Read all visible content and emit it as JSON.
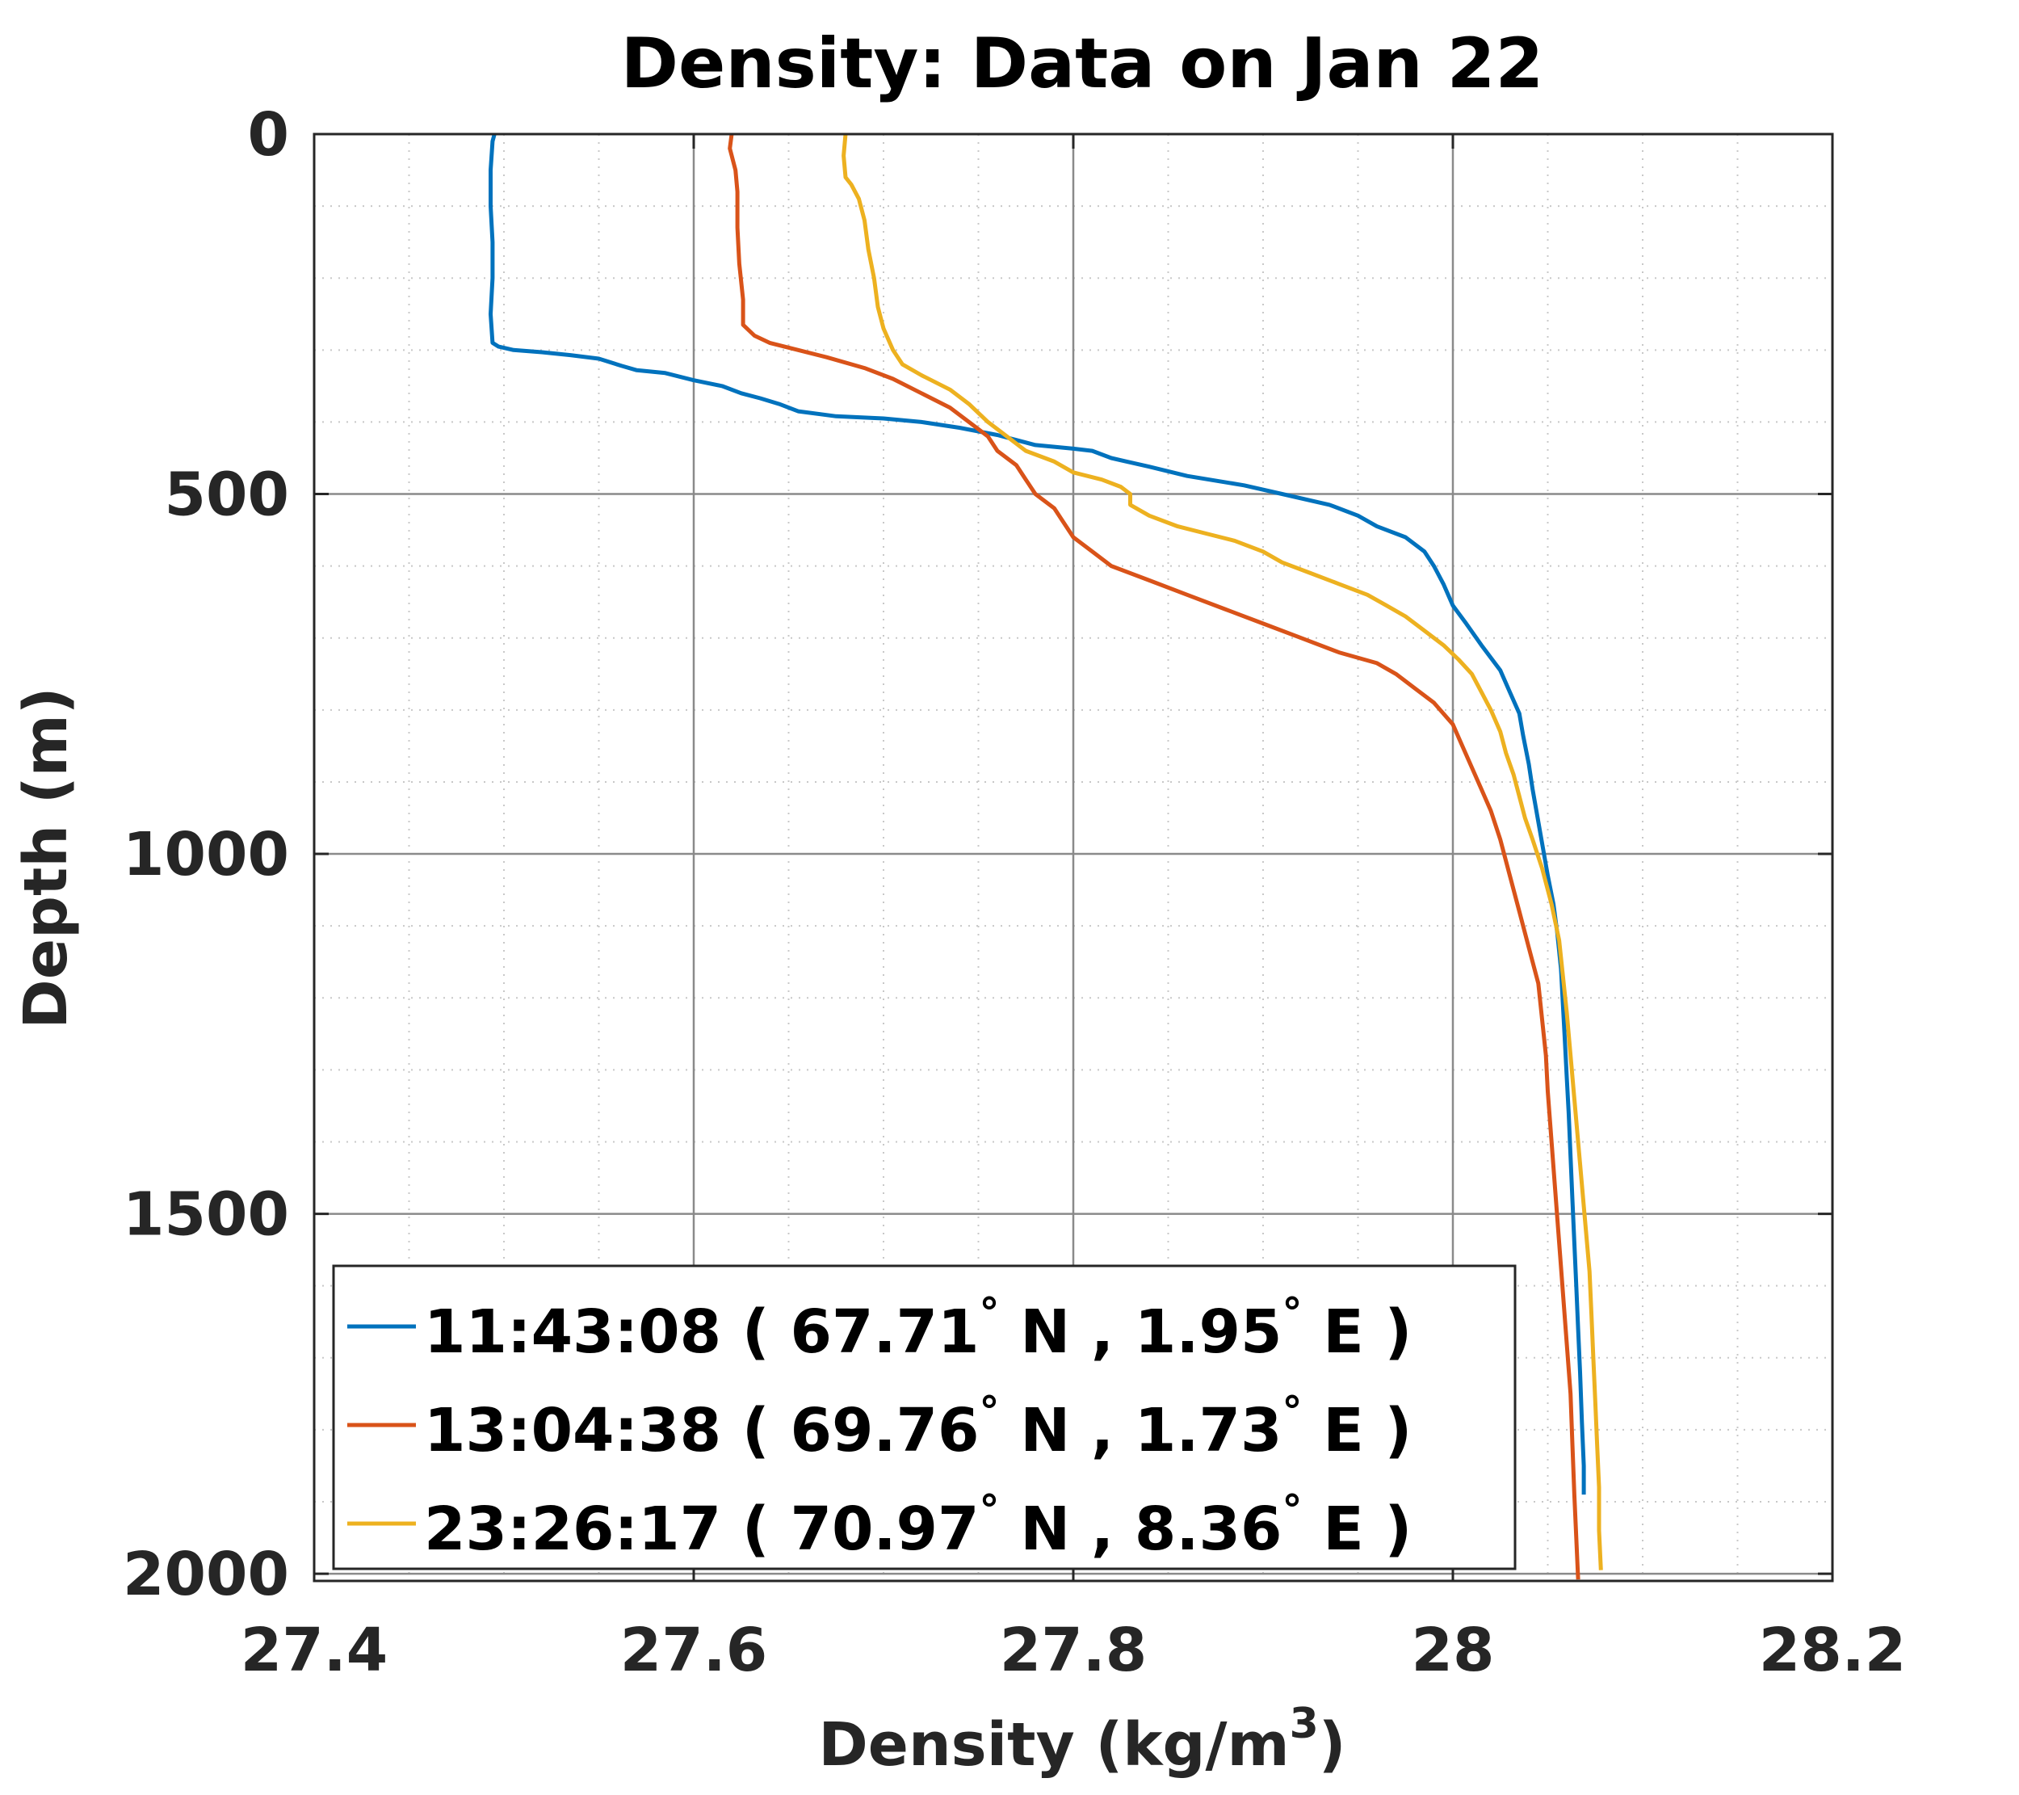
{
  "chart_data": {
    "type": "line",
    "title": "Density: Data on Jan 22",
    "xlabel": "Density (kg/m",
    "xlabel_sup": "3",
    "xlabel_end": ")",
    "ylabel": "Depth (m)",
    "xlim": [
      27.4,
      28.2
    ],
    "ylim": [
      0,
      2010
    ],
    "y_reversed": true,
    "xticks": [
      27.4,
      27.6,
      27.8,
      28,
      28.2
    ],
    "xtick_labels": [
      "27.4",
      "27.6",
      "27.8",
      "28",
      "28.2"
    ],
    "yticks": [
      0,
      500,
      1000,
      1500,
      2000
    ],
    "ytick_labels": [
      "0",
      "500",
      "1000",
      "1500",
      "2000"
    ],
    "grid": "major and minor",
    "legend_position": "bottom-left",
    "series": [
      {
        "name": "11:43:08 ( 67.71° N , 1.95° E )",
        "label_time": "11:43:08 ( 67.71",
        "label_lat": " N , 1.95",
        "label_end": " E )",
        "color": "#0072BD",
        "points": [
          [
            27.495,
            0
          ],
          [
            27.494,
            10
          ],
          [
            27.493,
            50
          ],
          [
            27.493,
            100
          ],
          [
            27.494,
            150
          ],
          [
            27.494,
            200
          ],
          [
            27.493,
            250
          ],
          [
            27.494,
            290
          ],
          [
            27.497,
            295
          ],
          [
            27.505,
            300
          ],
          [
            27.52,
            303
          ],
          [
            27.535,
            307
          ],
          [
            27.55,
            312
          ],
          [
            27.562,
            322
          ],
          [
            27.57,
            328
          ],
          [
            27.585,
            332
          ],
          [
            27.6,
            342
          ],
          [
            27.615,
            350
          ],
          [
            27.625,
            360
          ],
          [
            27.635,
            367
          ],
          [
            27.645,
            375
          ],
          [
            27.655,
            385
          ],
          [
            27.675,
            392
          ],
          [
            27.7,
            395
          ],
          [
            27.72,
            400
          ],
          [
            27.74,
            408
          ],
          [
            27.76,
            418
          ],
          [
            27.78,
            432
          ],
          [
            27.8,
            437
          ],
          [
            27.81,
            440
          ],
          [
            27.82,
            450
          ],
          [
            27.84,
            462
          ],
          [
            27.86,
            475
          ],
          [
            27.89,
            488
          ],
          [
            27.91,
            500
          ],
          [
            27.935,
            515
          ],
          [
            27.95,
            530
          ],
          [
            27.96,
            545
          ],
          [
            27.975,
            560
          ],
          [
            27.985,
            580
          ],
          [
            27.99,
            600
          ],
          [
            27.995,
            625
          ],
          [
            28.0,
            655
          ],
          [
            28.007,
            680
          ],
          [
            28.015,
            710
          ],
          [
            28.025,
            745
          ],
          [
            28.03,
            775
          ],
          [
            28.035,
            805
          ],
          [
            28.037,
            835
          ],
          [
            28.04,
            875
          ],
          [
            28.042,
            910
          ],
          [
            28.044,
            940
          ],
          [
            28.046,
            970
          ],
          [
            28.048,
            1000
          ],
          [
            28.05,
            1030
          ],
          [
            28.053,
            1070
          ],
          [
            28.055,
            1110
          ],
          [
            28.057,
            1160
          ],
          [
            28.058,
            1210
          ],
          [
            28.059,
            1260
          ],
          [
            28.06,
            1310
          ],
          [
            28.061,
            1360
          ],
          [
            28.062,
            1420
          ],
          [
            28.063,
            1480
          ],
          [
            28.064,
            1540
          ],
          [
            28.065,
            1600
          ],
          [
            28.066,
            1660
          ],
          [
            28.067,
            1720
          ],
          [
            28.068,
            1790
          ],
          [
            28.069,
            1850
          ],
          [
            28.069,
            1890
          ]
        ]
      },
      {
        "name": "13:04:38 ( 69.76° N , 1.73° E )",
        "label_time": "13:04:38 ( 69.76",
        "label_lat": " N , 1.73",
        "label_end": " E )",
        "color": "#D95319",
        "points": [
          [
            27.62,
            0
          ],
          [
            27.619,
            20
          ],
          [
            27.622,
            50
          ],
          [
            27.623,
            80
          ],
          [
            27.623,
            130
          ],
          [
            27.624,
            180
          ],
          [
            27.626,
            230
          ],
          [
            27.626,
            265
          ],
          [
            27.632,
            280
          ],
          [
            27.64,
            290
          ],
          [
            27.655,
            300
          ],
          [
            27.67,
            310
          ],
          [
            27.69,
            325
          ],
          [
            27.705,
            340
          ],
          [
            27.72,
            360
          ],
          [
            27.735,
            380
          ],
          [
            27.745,
            400
          ],
          [
            27.755,
            420
          ],
          [
            27.76,
            440
          ],
          [
            27.77,
            460
          ],
          [
            27.775,
            480
          ],
          [
            27.78,
            500
          ],
          [
            27.79,
            520
          ],
          [
            27.795,
            540
          ],
          [
            27.8,
            560
          ],
          [
            27.81,
            580
          ],
          [
            27.82,
            600
          ],
          [
            27.84,
            620
          ],
          [
            27.86,
            640
          ],
          [
            27.88,
            660
          ],
          [
            27.9,
            680
          ],
          [
            27.92,
            700
          ],
          [
            27.94,
            720
          ],
          [
            27.96,
            735
          ],
          [
            27.97,
            750
          ],
          [
            27.98,
            770
          ],
          [
            27.99,
            790
          ],
          [
            28.0,
            820
          ],
          [
            28.005,
            850
          ],
          [
            28.01,
            880
          ],
          [
            28.015,
            910
          ],
          [
            28.02,
            940
          ],
          [
            28.025,
            980
          ],
          [
            28.03,
            1030
          ],
          [
            28.035,
            1080
          ],
          [
            28.04,
            1130
          ],
          [
            28.045,
            1180
          ],
          [
            28.047,
            1230
          ],
          [
            28.049,
            1280
          ],
          [
            28.05,
            1330
          ],
          [
            28.052,
            1400
          ],
          [
            28.054,
            1470
          ],
          [
            28.056,
            1540
          ],
          [
            28.058,
            1610
          ],
          [
            28.06,
            1680
          ],
          [
            28.062,
            1750
          ],
          [
            28.063,
            1820
          ],
          [
            28.064,
            1890
          ],
          [
            28.065,
            1950
          ],
          [
            28.066,
            2008
          ]
        ]
      },
      {
        "name": "23:26:17 ( 70.97° N , 8.36° E )",
        "label_time": "23:26:17 ( 70.97",
        "label_lat": " N , 8.36",
        "label_end": " E )",
        "color": "#EDB120",
        "points": [
          [
            27.68,
            0
          ],
          [
            27.679,
            30
          ],
          [
            27.68,
            60
          ],
          [
            27.683,
            70
          ],
          [
            27.687,
            90
          ],
          [
            27.69,
            120
          ],
          [
            27.692,
            160
          ],
          [
            27.695,
            200
          ],
          [
            27.697,
            240
          ],
          [
            27.7,
            270
          ],
          [
            27.705,
            300
          ],
          [
            27.71,
            320
          ],
          [
            27.72,
            335
          ],
          [
            27.735,
            355
          ],
          [
            27.745,
            375
          ],
          [
            27.755,
            400
          ],
          [
            27.765,
            420
          ],
          [
            27.775,
            440
          ],
          [
            27.79,
            455
          ],
          [
            27.8,
            470
          ],
          [
            27.815,
            480
          ],
          [
            27.825,
            490
          ],
          [
            27.83,
            500
          ],
          [
            27.83,
            515
          ],
          [
            27.84,
            530
          ],
          [
            27.855,
            545
          ],
          [
            27.87,
            555
          ],
          [
            27.885,
            565
          ],
          [
            27.9,
            580
          ],
          [
            27.91,
            595
          ],
          [
            27.925,
            610
          ],
          [
            27.94,
            625
          ],
          [
            27.955,
            640
          ],
          [
            27.965,
            655
          ],
          [
            27.975,
            670
          ],
          [
            27.985,
            690
          ],
          [
            27.995,
            710
          ],
          [
            28.003,
            730
          ],
          [
            28.01,
            750
          ],
          [
            28.015,
            775
          ],
          [
            28.02,
            800
          ],
          [
            28.025,
            830
          ],
          [
            28.028,
            860
          ],
          [
            28.032,
            890
          ],
          [
            28.035,
            920
          ],
          [
            28.038,
            950
          ],
          [
            28.042,
            980
          ],
          [
            28.047,
            1020
          ],
          [
            28.052,
            1070
          ],
          [
            28.056,
            1120
          ],
          [
            28.058,
            1170
          ],
          [
            28.06,
            1220
          ],
          [
            28.062,
            1280
          ],
          [
            28.064,
            1340
          ],
          [
            28.066,
            1400
          ],
          [
            28.068,
            1460
          ],
          [
            28.07,
            1520
          ],
          [
            28.072,
            1580
          ],
          [
            28.073,
            1640
          ],
          [
            28.074,
            1700
          ],
          [
            28.075,
            1760
          ],
          [
            28.076,
            1820
          ],
          [
            28.077,
            1880
          ],
          [
            28.077,
            1940
          ],
          [
            28.078,
            1995
          ]
        ]
      }
    ]
  }
}
